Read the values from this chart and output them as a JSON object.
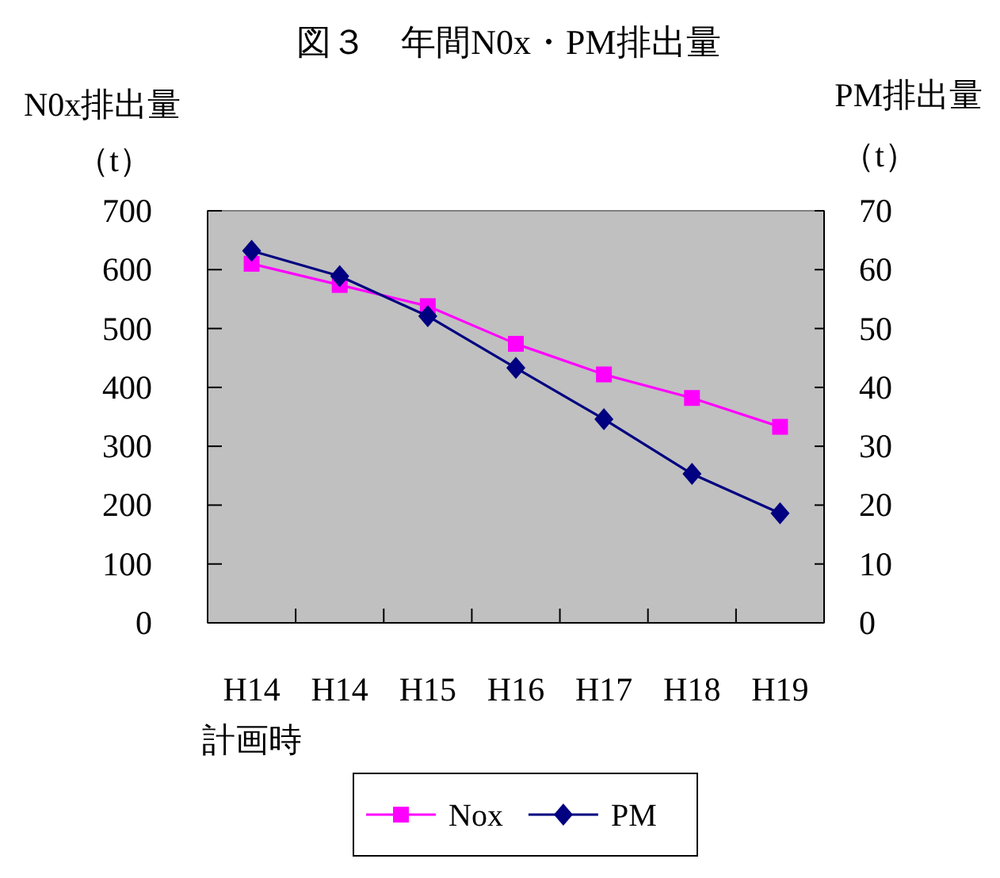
{
  "chart_data": {
    "type": "line",
    "title": "図３　年間N0x・PM排出量",
    "ylabel": "N0x排出量（t）",
    "y2label": "PM排出量（t）",
    "categories": [
      "H14\n計画時",
      "H14",
      "H15",
      "H16",
      "H17",
      "H18",
      "H19"
    ],
    "series": [
      {
        "name": "Nox",
        "color": "#ff00ff",
        "marker": "square",
        "values": [
          610,
          574,
          538,
          474,
          422,
          382,
          333
        ]
      },
      {
        "name": "PM",
        "color": "#000080",
        "marker": "diamond",
        "axis": "y2",
        "values": [
          63.2,
          58.9,
          52.1,
          43.3,
          34.6,
          25.3,
          18.6
        ]
      }
    ],
    "ylim": [
      0,
      700
    ],
    "yticks": [
      0,
      100,
      200,
      300,
      400,
      500,
      600,
      700
    ],
    "y2lim": [
      0,
      70
    ],
    "y2ticks": [
      0,
      10,
      20,
      30,
      40,
      50,
      60,
      70
    ],
    "grid": false,
    "legend": "bottom",
    "line_style": "solid"
  }
}
